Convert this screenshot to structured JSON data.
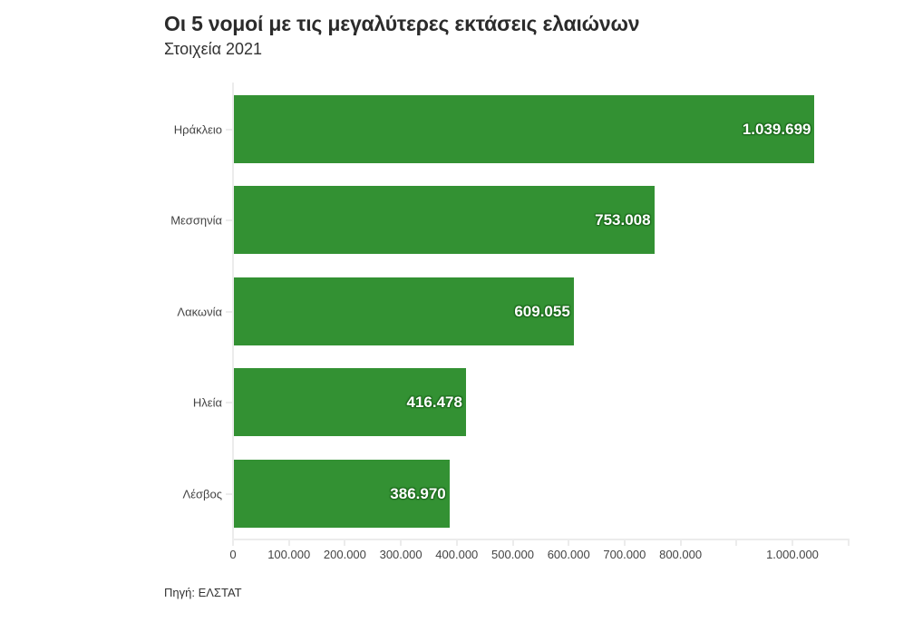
{
  "header": {
    "title": "Οι 5 νομοί με τις μεγαλύτερες εκτάσεις ελαιώνων",
    "subtitle": "Στοιχεία 2021"
  },
  "footer": {
    "source": "Πηγή: ΕΛΣΤΑΤ"
  },
  "colors": {
    "bar": "#339133",
    "axis": "#ececec",
    "text": "#333333"
  },
  "chart_data": {
    "type": "bar",
    "orientation": "horizontal",
    "title": "Οι 5 νομοί με τις μεγαλύτερες εκτάσεις ελαιώνων",
    "subtitle": "Στοιχεία 2021",
    "categories": [
      "Ηράκλειο",
      "Μεσσηνία",
      "Λακωνία",
      "Ηλεία",
      "Λέσβος"
    ],
    "values": [
      1039699,
      753008,
      609055,
      416478,
      386970
    ],
    "value_labels": [
      "1.039.699",
      "753.008",
      "609.055",
      "416.478",
      "386.970"
    ],
    "xlabel": "",
    "ylabel": "",
    "xlim": [
      0,
      1100000
    ],
    "x_ticks": [
      0,
      100000,
      200000,
      300000,
      400000,
      500000,
      600000,
      700000,
      800000,
      900000,
      1000000,
      1100000
    ],
    "x_tick_labels": [
      "0",
      "100.000",
      "200.000",
      "300.000",
      "400.000",
      "500.000",
      "600.000",
      "700.000",
      "800.000",
      "",
      "1.000.000",
      ""
    ],
    "grid": false,
    "legend": null,
    "source": "Πηγή: ΕΛΣΤΑΤ"
  }
}
